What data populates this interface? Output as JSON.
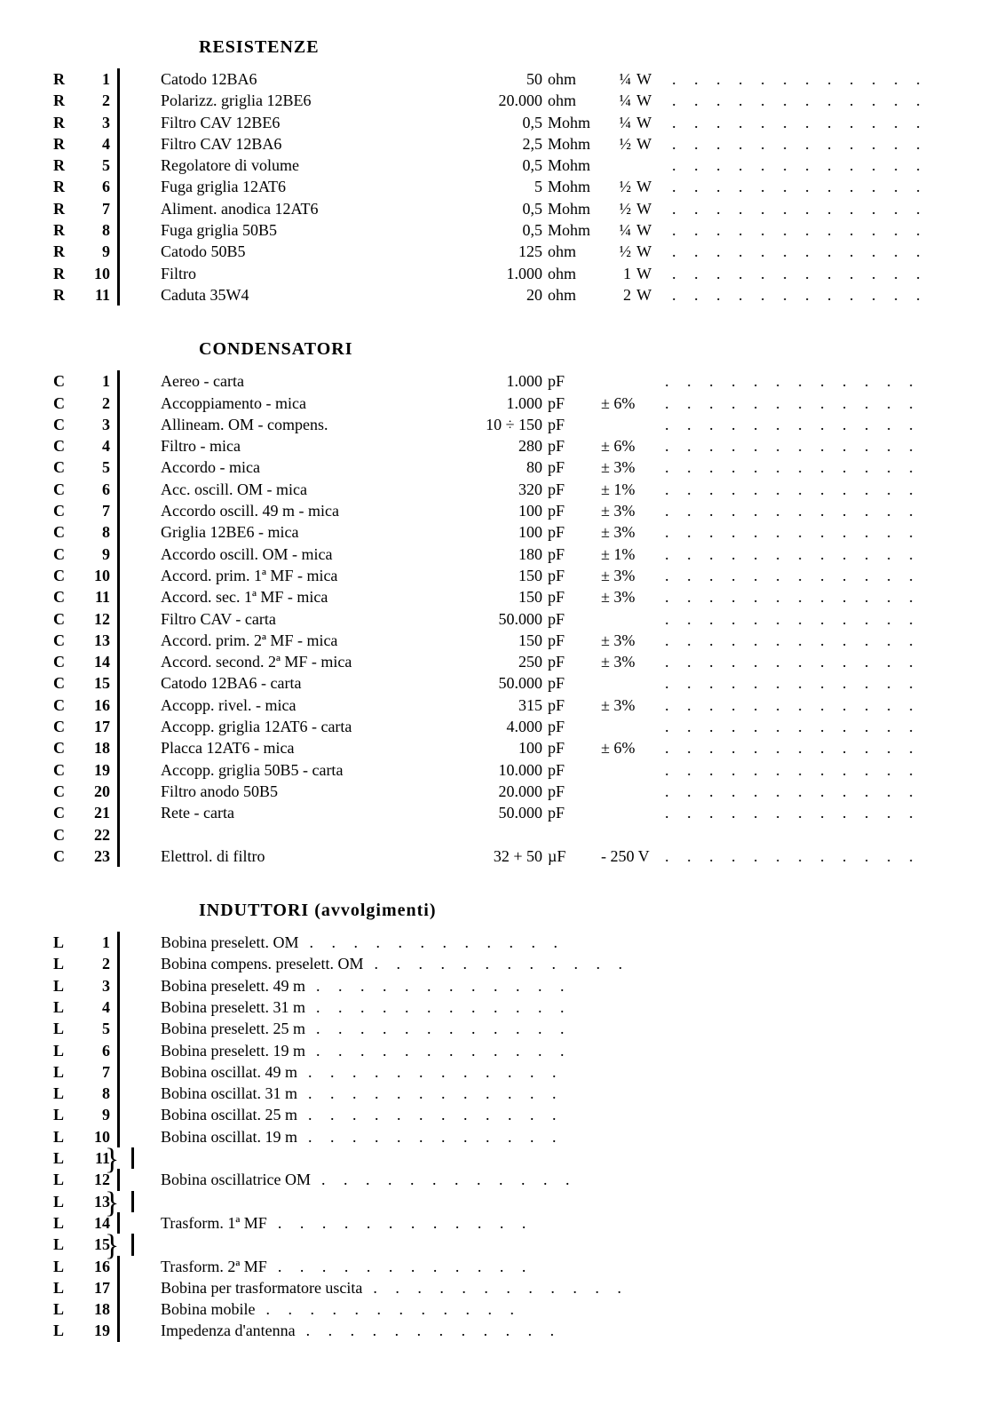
{
  "sections": {
    "resistenze": {
      "title": "RESISTENZE",
      "rows": [
        {
          "ref": "R",
          "n": "1",
          "desc": "Catodo 12BA6",
          "val": "50",
          "unit": "ohm",
          "pow": "¼",
          "pu": "W"
        },
        {
          "ref": "R",
          "n": "2",
          "desc": "Polarizz. griglia 12BE6",
          "val": "20.000",
          "unit": "ohm",
          "pow": "¼",
          "pu": "W"
        },
        {
          "ref": "R",
          "n": "3",
          "desc": "Filtro CAV 12BE6",
          "val": "0,5",
          "unit": "Mohm",
          "pow": "¼",
          "pu": "W"
        },
        {
          "ref": "R",
          "n": "4",
          "desc": "Filtro CAV 12BA6",
          "val": "2,5",
          "unit": "Mohm",
          "pow": "½",
          "pu": "W"
        },
        {
          "ref": "R",
          "n": "5",
          "desc": "Regolatore di volume",
          "val": "0,5",
          "unit": "Mohm",
          "pow": "",
          "pu": ""
        },
        {
          "ref": "R",
          "n": "6",
          "desc": "Fuga griglia 12AT6",
          "val": "5",
          "unit": "Mohm",
          "pow": "½",
          "pu": "W"
        },
        {
          "ref": "R",
          "n": "7",
          "desc": "Aliment. anodica 12AT6",
          "val": "0,5",
          "unit": "Mohm",
          "pow": "½",
          "pu": "W"
        },
        {
          "ref": "R",
          "n": "8",
          "desc": "Fuga griglia 50B5",
          "val": "0,5",
          "unit": "Mohm",
          "pow": "¼",
          "pu": "W"
        },
        {
          "ref": "R",
          "n": "9",
          "desc": "Catodo 50B5",
          "val": "125",
          "unit": "ohm",
          "pow": "½",
          "pu": "W"
        },
        {
          "ref": "R",
          "n": "10",
          "desc": "Filtro",
          "val": "1.000",
          "unit": "ohm",
          "pow": "1",
          "pu": "W"
        },
        {
          "ref": "R",
          "n": "11",
          "desc": "Caduta 35W4",
          "val": "20",
          "unit": "ohm",
          "pow": "2",
          "pu": "W"
        }
      ]
    },
    "condensatori": {
      "title": "CONDENSATORI",
      "rows": [
        {
          "ref": "C",
          "n": "1",
          "desc": "Aereo - carta",
          "val": "1.000",
          "unit": "pF",
          "tol": ""
        },
        {
          "ref": "C",
          "n": "2",
          "desc": "Accoppiamento - mica",
          "val": "1.000",
          "unit": "pF",
          "tol": "± 6%"
        },
        {
          "ref": "C",
          "n": "3",
          "desc": "Allineam. OM - compens.",
          "val": "10 ÷ 150",
          "unit": "pF",
          "tol": ""
        },
        {
          "ref": "C",
          "n": "4",
          "desc": "Filtro - mica",
          "val": "280",
          "unit": "pF",
          "tol": "± 6%"
        },
        {
          "ref": "C",
          "n": "5",
          "desc": "Accordo - mica",
          "val": "80",
          "unit": "pF",
          "tol": "± 3%"
        },
        {
          "ref": "C",
          "n": "6",
          "desc": "Acc. oscill. OM - mica",
          "val": "320",
          "unit": "pF",
          "tol": "± 1%"
        },
        {
          "ref": "C",
          "n": "7",
          "desc": "Accordo oscill. 49 m - mica",
          "val": "100",
          "unit": "pF",
          "tol": "± 3%"
        },
        {
          "ref": "C",
          "n": "8",
          "desc": "Griglia 12BE6 - mica",
          "val": "100",
          "unit": "pF",
          "tol": "± 3%"
        },
        {
          "ref": "C",
          "n": "9",
          "desc": "Accordo oscill. OM - mica",
          "val": "180",
          "unit": "pF",
          "tol": "± 1%"
        },
        {
          "ref": "C",
          "n": "10",
          "desc": "Accord. prim. 1ª MF - mica",
          "val": "150",
          "unit": "pF",
          "tol": "± 3%"
        },
        {
          "ref": "C",
          "n": "11",
          "desc": "Accord. sec. 1ª MF - mica",
          "val": "150",
          "unit": "pF",
          "tol": "± 3%"
        },
        {
          "ref": "C",
          "n": "12",
          "desc": "Filtro CAV - carta",
          "val": "50.000",
          "unit": "pF",
          "tol": ""
        },
        {
          "ref": "C",
          "n": "13",
          "desc": "Accord. prim. 2ª MF - mica",
          "val": "150",
          "unit": "pF",
          "tol": "± 3%"
        },
        {
          "ref": "C",
          "n": "14",
          "desc": "Accord. second. 2ª MF - mica",
          "val": "250",
          "unit": "pF",
          "tol": "± 3%"
        },
        {
          "ref": "C",
          "n": "15",
          "desc": "Catodo 12BA6 - carta",
          "val": "50.000",
          "unit": "pF",
          "tol": ""
        },
        {
          "ref": "C",
          "n": "16",
          "desc": "Accopp. rivel. - mica",
          "val": "315",
          "unit": "pF",
          "tol": "± 3%"
        },
        {
          "ref": "C",
          "n": "17",
          "desc": "Accopp. griglia 12AT6 - carta",
          "val": "4.000",
          "unit": "pF",
          "tol": ""
        },
        {
          "ref": "C",
          "n": "18",
          "desc": "Placca 12AT6 - mica",
          "val": "100",
          "unit": "pF",
          "tol": "± 6%"
        },
        {
          "ref": "C",
          "n": "19",
          "desc": "Accopp. griglia 50B5 - carta",
          "val": "10.000",
          "unit": "pF",
          "tol": ""
        },
        {
          "ref": "C",
          "n": "20",
          "desc": "Filtro anodo 50B5",
          "val": "20.000",
          "unit": "pF",
          "tol": ""
        },
        {
          "ref": "C",
          "n": "21",
          "desc": "Rete - carta",
          "val": "50.000",
          "unit": "pF",
          "tol": ""
        },
        {
          "ref": "C",
          "n": "22",
          "desc": "",
          "val": "",
          "unit": "",
          "tol": ""
        },
        {
          "ref": "C",
          "n": "23",
          "desc": "Elettrol. di filtro",
          "val": "32 + 50",
          "unit": "µF",
          "tol": "- 250 V"
        }
      ]
    },
    "induttori": {
      "title": "INDUTTORI (avvolgimenti)",
      "rows": [
        {
          "ref": "L",
          "n": "1",
          "desc": "Bobina preselett. OM"
        },
        {
          "ref": "L",
          "n": "2",
          "desc": "Bobina compens. preselett. OM"
        },
        {
          "ref": "L",
          "n": "3",
          "desc": "Bobina preselett. 49 m"
        },
        {
          "ref": "L",
          "n": "4",
          "desc": "Bobina preselett. 31 m"
        },
        {
          "ref": "L",
          "n": "5",
          "desc": "Bobina preselett. 25 m"
        },
        {
          "ref": "L",
          "n": "6",
          "desc": "Bobina preselett. 19 m"
        },
        {
          "ref": "L",
          "n": "7",
          "desc": "Bobina oscillat. 49 m"
        },
        {
          "ref": "L",
          "n": "8",
          "desc": "Bobina oscillat. 31 m"
        },
        {
          "ref": "L",
          "n": "9",
          "desc": "Bobina oscillat. 25 m"
        },
        {
          "ref": "L",
          "n": "10",
          "desc": "Bobina oscillat. 19 m"
        },
        {
          "ref": "L",
          "n": "11",
          "desc": "",
          "brace": true
        },
        {
          "ref": "L",
          "n": "12",
          "desc": "Bobina oscillatrice OM"
        },
        {
          "ref": "L",
          "n": "13",
          "desc": "",
          "brace": true
        },
        {
          "ref": "L",
          "n": "14",
          "desc": "Trasform. 1ª MF"
        },
        {
          "ref": "L",
          "n": "15",
          "desc": "",
          "brace": true
        },
        {
          "ref": "L",
          "n": "16",
          "desc": "Trasform. 2ª MF"
        },
        {
          "ref": "L",
          "n": "17",
          "desc": "Bobina per trasformatore uscita"
        },
        {
          "ref": "L",
          "n": "18",
          "desc": "Bobina mobile"
        },
        {
          "ref": "L",
          "n": "19",
          "desc": "Impedenza d'antenna"
        }
      ]
    }
  },
  "dot_leader": ". . . . . . . . . . . ."
}
